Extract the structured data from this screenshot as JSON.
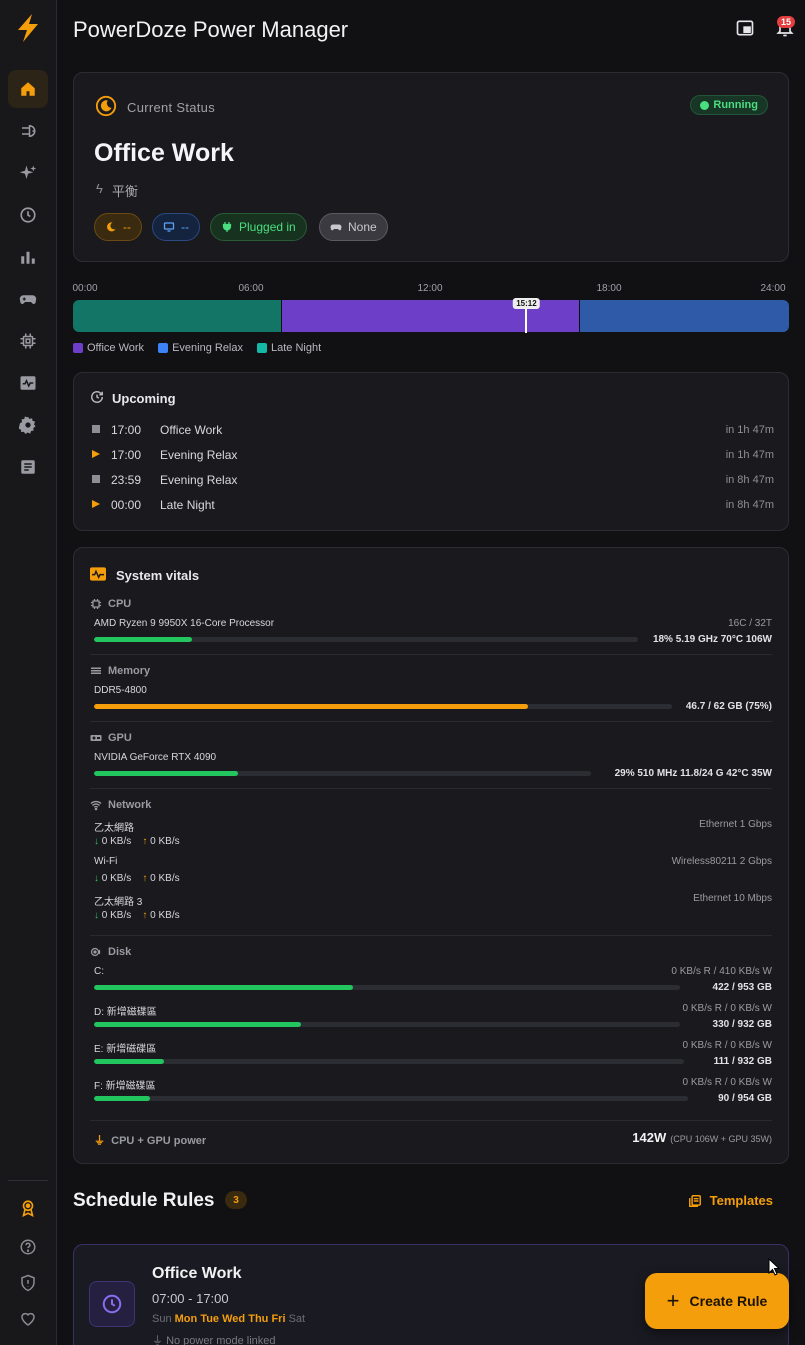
{
  "app": {
    "title": "PowerDoze Power Manager",
    "notification_count": "15"
  },
  "colors": {
    "accent": "#f59e0b",
    "office": "#6d3fc9",
    "evening": "#2f5aa8",
    "late": "#137566",
    "green": "#22c55e",
    "orange": "#f59e0b"
  },
  "sidebar": {
    "items": [
      "home-icon",
      "plug-icon",
      "sparkles-icon",
      "clock-icon",
      "bar-chart-icon",
      "gamepad-icon",
      "chip-icon",
      "activity-icon",
      "gear-icon",
      "log-icon"
    ],
    "bottom": [
      "award-icon",
      "help-icon",
      "shield-icon",
      "heart-icon"
    ]
  },
  "status": {
    "label": "Current Status",
    "state": "Running",
    "profile": "Office Work",
    "mode": "平衡",
    "chips": [
      {
        "label": "--"
      },
      {
        "label": "--"
      },
      {
        "label": "Plugged in"
      },
      {
        "label": "None"
      }
    ]
  },
  "timeline": {
    "ticks": [
      "00:00",
      "06:00",
      "12:00",
      "18:00",
      "24:00"
    ],
    "now": "15:12",
    "segments": [
      {
        "name": "Late Night",
        "start": 0,
        "end": 7
      },
      {
        "name": "Office Work",
        "start": 7,
        "end": 17
      },
      {
        "name": "Evening Relax",
        "start": 17,
        "end": 24
      }
    ],
    "legend": [
      "Office Work",
      "Evening Relax",
      "Late Night"
    ]
  },
  "upcoming": {
    "title": "Upcoming",
    "rows": [
      {
        "time": "17:00",
        "name": "Office Work",
        "in": "in 1h 47m",
        "marker": "stop"
      },
      {
        "time": "17:00",
        "name": "Evening Relax",
        "in": "in 1h 47m",
        "marker": "start"
      },
      {
        "time": "23:59",
        "name": "Evening Relax",
        "in": "in 8h 47m",
        "marker": "stop"
      },
      {
        "time": "00:00",
        "name": "Late Night",
        "in": "in 8h 47m",
        "marker": "start"
      }
    ]
  },
  "vitals": {
    "title": "System vitals",
    "cpu": {
      "label": "CPU",
      "name": "AMD Ryzen 9 9950X 16-Core Processor",
      "cores": "16C / 32T",
      "usage": 18,
      "stats": "18%  5.19 GHz  70°C  106W"
    },
    "memory": {
      "label": "Memory",
      "name": "DDR5-4800",
      "usage": 75,
      "stats": "46.7 / 62 GB  (75%)"
    },
    "gpu": {
      "label": "GPU",
      "name": "NVIDIA GeForce RTX 4090",
      "usage": 29,
      "stats": "29%  510 MHz  11.8/24 G  42°C  35W"
    },
    "network": {
      "label": "Network",
      "adapters": [
        {
          "name": "乙太網路",
          "type": "Ethernet  1 Gbps",
          "down": "0 KB/s",
          "up": "0 KB/s"
        },
        {
          "name": "Wi-Fi",
          "type": "Wireless80211  2 Gbps",
          "down": "0 KB/s",
          "up": "0 KB/s"
        },
        {
          "name": "乙太網路 3",
          "type": "Ethernet  10 Mbps",
          "down": "0 KB/s",
          "up": "0 KB/s"
        }
      ]
    },
    "disk": {
      "label": "Disk",
      "drives": [
        {
          "name": "C:",
          "io": "0 KB/s R  /  410 KB/s W",
          "used": 422,
          "total": 953,
          "size": "422 / 953 GB"
        },
        {
          "name": "D: 新增磁碟區",
          "io": "0 KB/s R  /  0 KB/s W",
          "used": 330,
          "total": 932,
          "size": "330 / 932 GB"
        },
        {
          "name": "E: 新增磁碟區",
          "io": "0 KB/s R  /  0 KB/s W",
          "used": 111,
          "total": 932,
          "size": "111 / 932 GB"
        },
        {
          "name": "F: 新增磁碟區",
          "io": "0 KB/s R  /  0 KB/s W",
          "used": 90,
          "total": 954,
          "size": "90 / 954 GB"
        }
      ]
    },
    "power": {
      "label": "CPU + GPU power",
      "value": "142W",
      "detail": "(CPU 106W + GPU 35W)"
    }
  },
  "schedule": {
    "title": "Schedule Rules",
    "count": "3",
    "templates_label": "Templates",
    "rule": {
      "name": "Office Work",
      "time": "07:00 - 17:00",
      "days": [
        {
          "d": "Sun",
          "on": false
        },
        {
          "d": "Mon",
          "on": true
        },
        {
          "d": "Tue",
          "on": true
        },
        {
          "d": "Wed",
          "on": true
        },
        {
          "d": "Thu",
          "on": true
        },
        {
          "d": "Fri",
          "on": true
        },
        {
          "d": "Sat",
          "on": false
        }
      ],
      "link": "No power mode linked"
    },
    "create_label": "Create Rule"
  }
}
